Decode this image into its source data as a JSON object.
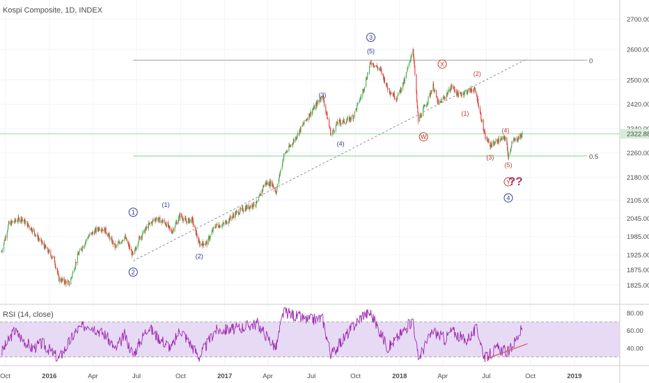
{
  "chart_data": {
    "type": "candlestick",
    "title": "Kospi Composite, 1D, INDEX",
    "price_axis": {
      "ticks": [
        "2700.00",
        "2600.00",
        "2500.00",
        "2420.00",
        "2340.00",
        "2260.00",
        "2180.00",
        "2105.00",
        "2045.00",
        "1985.00",
        "1925.00",
        "1875.00",
        "1825.00"
      ],
      "last_price": "2322.88"
    },
    "time_axis": {
      "ticks": [
        "Oct",
        "2016",
        "Apr",
        "Jul",
        "Oct",
        "2017",
        "Apr",
        "Jul",
        "Oct",
        "2018",
        "Apr",
        "Jul",
        "Oct",
        "2019"
      ]
    },
    "price_path": [
      [
        "2015-09-23",
        1935
      ],
      [
        "2015-10-08",
        2025
      ],
      [
        "2015-11-03",
        2045
      ],
      [
        "2015-11-25",
        2010
      ],
      [
        "2015-12-18",
        1960
      ],
      [
        "2016-01-11",
        1910
      ],
      [
        "2016-01-21",
        1845
      ],
      [
        "2016-02-12",
        1830
      ],
      [
        "2016-03-01",
        1925
      ],
      [
        "2016-03-22",
        1985
      ],
      [
        "2016-04-15",
        2015
      ],
      [
        "2016-04-27",
        2005
      ],
      [
        "2016-05-18",
        1950
      ],
      [
        "2016-06-06",
        1985
      ],
      [
        "2016-06-24",
        1920
      ],
      [
        "2016-07-05",
        1975
      ],
      [
        "2016-07-25",
        2020
      ],
      [
        "2016-08-10",
        2045
      ],
      [
        "2016-08-30",
        2030
      ],
      [
        "2016-09-12",
        2000
      ],
      [
        "2016-09-30",
        2055
      ],
      [
        "2016-10-12",
        2035
      ],
      [
        "2016-10-25",
        2040
      ],
      [
        "2016-11-09",
        1960
      ],
      [
        "2016-11-25",
        1965
      ],
      [
        "2016-12-12",
        2020
      ],
      [
        "2016-12-30",
        2025
      ],
      [
        "2017-01-23",
        2060
      ],
      [
        "2017-02-15",
        2080
      ],
      [
        "2017-03-10",
        2095
      ],
      [
        "2017-03-25",
        2160
      ],
      [
        "2017-04-10",
        2160
      ],
      [
        "2017-04-18",
        2130
      ],
      [
        "2017-05-04",
        2250
      ],
      [
        "2017-05-25",
        2300
      ],
      [
        "2017-06-22",
        2375
      ],
      [
        "2017-07-14",
        2425
      ],
      [
        "2017-07-24",
        2450
      ],
      [
        "2017-08-11",
        2320
      ],
      [
        "2017-08-25",
        2360
      ],
      [
        "2017-09-12",
        2365
      ],
      [
        "2017-09-26",
        2380
      ],
      [
        "2017-10-16",
        2460
      ],
      [
        "2017-11-02",
        2560
      ],
      [
        "2017-11-23",
        2530
      ],
      [
        "2017-12-08",
        2470
      ],
      [
        "2017-12-26",
        2440
      ],
      [
        "2018-01-12",
        2500
      ],
      [
        "2018-01-29",
        2605
      ],
      [
        "2018-02-09",
        2365
      ],
      [
        "2018-02-28",
        2430
      ],
      [
        "2018-03-12",
        2480
      ],
      [
        "2018-03-23",
        2420
      ],
      [
        "2018-04-06",
        2445
      ],
      [
        "2018-04-20",
        2480
      ],
      [
        "2018-05-04",
        2450
      ],
      [
        "2018-05-18",
        2460
      ],
      [
        "2018-06-05",
        2470
      ],
      [
        "2018-06-12",
        2440
      ],
      [
        "2018-06-28",
        2315
      ],
      [
        "2018-07-09",
        2285
      ],
      [
        "2018-07-25",
        2300
      ],
      [
        "2018-08-10",
        2310
      ],
      [
        "2018-08-16",
        2250
      ],
      [
        "2018-08-24",
        2295
      ],
      [
        "2018-09-06",
        2310
      ],
      [
        "2018-09-14",
        2320
      ]
    ],
    "rsi": {
      "title": "RSI (14, close)",
      "ticks": [
        "80.00",
        "60.00",
        "40.00"
      ],
      "upper_band": 70,
      "lower_band": 30,
      "path": [
        [
          "2015-09-23",
          35
        ],
        [
          "2015-10-20",
          60
        ],
        [
          "2015-11-25",
          40
        ],
        [
          "2015-12-18",
          45
        ],
        [
          "2016-01-21",
          28
        ],
        [
          "2016-02-26",
          60
        ],
        [
          "2016-03-22",
          68
        ],
        [
          "2016-04-27",
          55
        ],
        [
          "2016-05-18",
          38
        ],
        [
          "2016-06-06",
          55
        ],
        [
          "2016-06-24",
          32
        ],
        [
          "2016-07-25",
          65
        ],
        [
          "2016-08-10",
          55
        ],
        [
          "2016-09-12",
          40
        ],
        [
          "2016-09-30",
          62
        ],
        [
          "2016-11-09",
          30
        ],
        [
          "2016-12-12",
          60
        ],
        [
          "2017-01-23",
          62
        ],
        [
          "2017-03-10",
          68
        ],
        [
          "2017-04-18",
          40
        ],
        [
          "2017-05-04",
          82
        ],
        [
          "2017-06-22",
          72
        ],
        [
          "2017-07-24",
          74
        ],
        [
          "2017-08-11",
          32
        ],
        [
          "2017-09-12",
          55
        ],
        [
          "2017-10-16",
          78
        ],
        [
          "2017-11-02",
          80
        ],
        [
          "2017-12-08",
          40
        ],
        [
          "2018-01-29",
          72
        ],
        [
          "2018-02-09",
          28
        ],
        [
          "2018-03-12",
          60
        ],
        [
          "2018-04-06",
          50
        ],
        [
          "2018-04-20",
          60
        ],
        [
          "2018-05-18",
          48
        ],
        [
          "2018-06-12",
          62
        ],
        [
          "2018-06-28",
          28
        ],
        [
          "2018-07-25",
          40
        ],
        [
          "2018-08-16",
          35
        ],
        [
          "2018-09-14",
          62
        ]
      ]
    },
    "levels": [
      {
        "label": "0",
        "value": 2565,
        "color": "#9e9e9e"
      },
      {
        "label": "0.5",
        "value": 2250,
        "color": "#7ed38a"
      },
      {
        "label": "",
        "value": 2322.88,
        "color": "#9bd39e"
      }
    ],
    "trendlines": [
      {
        "from": [
          "2016-06-24",
          1905
        ],
        "to": [
          "2018-09-25",
          2570
        ],
        "color": "#8c8c8c",
        "dashed": true
      }
    ],
    "rsi_trendline": {
      "from": [
        "2018-07-02",
        28
      ],
      "to": [
        "2018-09-25",
        45
      ],
      "color": "#e05555"
    },
    "wave_labels": [
      {
        "text": "1",
        "date": "2016-06-24",
        "price": 2065,
        "style": "circle",
        "color": "#2f3a8f"
      },
      {
        "text": "2",
        "date": "2016-06-24",
        "price": 1868,
        "style": "circle",
        "color": "#2f3a8f"
      },
      {
        "text": "(1)",
        "date": "2016-08-31",
        "price": 2090,
        "style": "plain",
        "color": "#2f3a8f"
      },
      {
        "text": "(2)",
        "date": "2016-11-09",
        "price": 1920,
        "style": "plain",
        "color": "#2f3a8f"
      },
      {
        "text": "(3)",
        "date": "2017-07-24",
        "price": 2450,
        "style": "plain",
        "color": "#2f3a8f"
      },
      {
        "text": "(4)",
        "date": "2017-08-31",
        "price": 2290,
        "style": "plain",
        "color": "#2f3a8f"
      },
      {
        "text": "3",
        "date": "2017-11-02",
        "price": 2640,
        "style": "circle",
        "color": "#2f3a8f"
      },
      {
        "text": "(5)",
        "date": "2017-11-02",
        "price": 2595,
        "style": "plain",
        "color": "#2f3a8f"
      },
      {
        "text": "W",
        "date": "2018-02-20",
        "price": 2313,
        "style": "circle",
        "color": "#c0392b"
      },
      {
        "text": "X",
        "date": "2018-03-31",
        "price": 2552,
        "style": "circle",
        "color": "#c0392b"
      },
      {
        "text": "(2)",
        "date": "2018-06-12",
        "price": 2520,
        "style": "plain",
        "color": "#c0392b"
      },
      {
        "text": "(1)",
        "date": "2018-05-18",
        "price": 2390,
        "style": "plain",
        "color": "#c0392b"
      },
      {
        "text": "(4)",
        "date": "2018-08-10",
        "price": 2333,
        "style": "plain",
        "color": "#c0392b"
      },
      {
        "text": "(3)",
        "date": "2018-07-09",
        "price": 2245,
        "style": "plain",
        "color": "#c0392b"
      },
      {
        "text": "(5)",
        "date": "2018-08-16",
        "price": 2220,
        "style": "plain",
        "color": "#c0392b"
      },
      {
        "text": "Y",
        "date": "2018-08-16",
        "price": 2165,
        "style": "circle",
        "color": "#c0392b"
      },
      {
        "text": "??",
        "date": "2018-08-31",
        "price": 2168,
        "style": "big",
        "color": "#b03a5b"
      },
      {
        "text": "4",
        "date": "2018-08-16",
        "price": 2112,
        "style": "circle",
        "color": "#2f3a8f"
      }
    ],
    "colors": {
      "up": "#4caf50",
      "down": "#e53935",
      "rsi_line": "#9c27b0",
      "rsi_fill": "#e3d3f2",
      "grid": "#f0f3fa",
      "axis": "#cccccc",
      "last_price_tag": "#d8ecd8"
    }
  }
}
